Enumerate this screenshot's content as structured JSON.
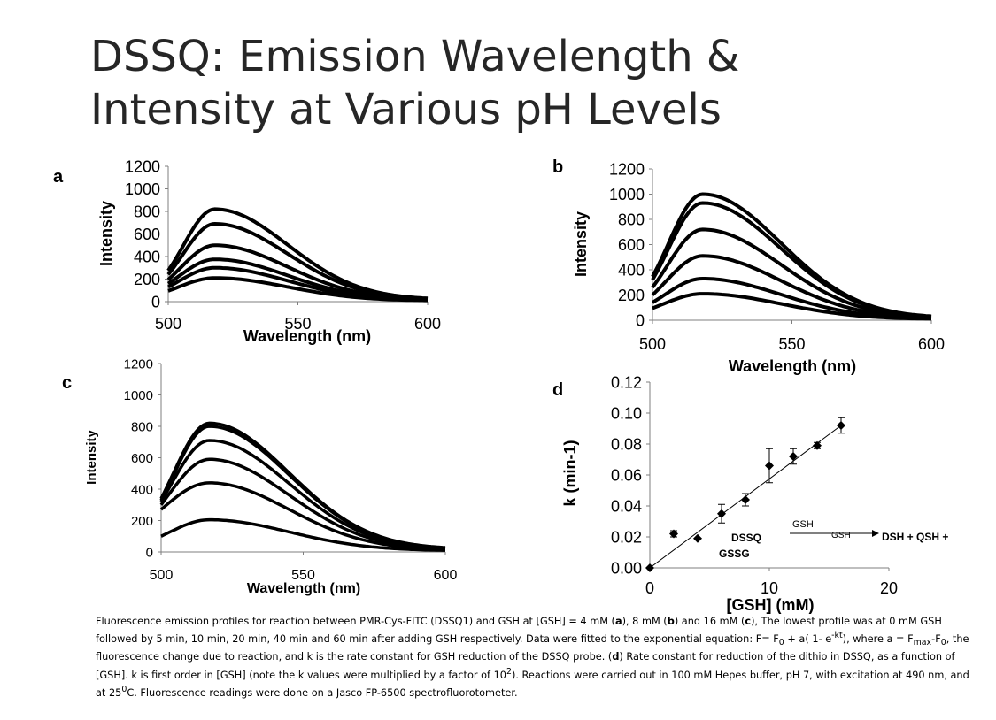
{
  "title_line1": "DSSQ: Emission Wavelength &",
  "title_line2": "Intensity at Various pH Levels",
  "panels": {
    "a": "a",
    "b": "b",
    "c": "c",
    "d": "d"
  },
  "reaction": {
    "reactant": "DSSQ",
    "arrow_label": "GSH",
    "arrow_sub": "GSH",
    "products": "DSH + QSH +",
    "byproduct": "GSSG"
  },
  "caption": {
    "p1": "Fluorescence emission profiles for reaction between PMR-Cys-FITC (DSSQ1) and GSH at [GSH] = 4 mM (",
    "a": "a",
    "p2": "), 8 mM (",
    "b": "b",
    "p3": ") and 16 mM (",
    "c": "c",
    "p4": "), The  lowest profile was at 0 mM GSH followed by 5 min, 10 min, 20 min, 40 min and 60 min after adding GSH respectively. Data were fitted to the exponential equation: F= F",
    "sub0": "0",
    "p5": " + a( 1- e",
    "sup_kt": "-kt",
    "p6": "), where  a = F",
    "sub_max": "max",
    "p7": "-F",
    "sub0b": "0",
    "p8": ", the fluorescence change due to reaction, and  k is the rate constant for GSH reduction of the DSSQ probe. (",
    "d": "d",
    "p9": ") Rate constant for reduction of the dithio in DSSQ, as a function of [GSH]. k is first order in [GSH] (note the k values were multiplied by a factor of 10",
    "sup2": "2",
    "p10": "). Reactions were carried out in 100 mM Hepes buffer, pH 7, with excitation at 490 nm, and at 25",
    "sup_o": "0",
    "p11": "C. Fluorescence readings were done on a  Jasco FP-6500 spectrofluorotometer."
  },
  "chart_data": [
    {
      "id": "a",
      "type": "line",
      "xlabel": "Wavelength (nm)",
      "ylabel": "Intensity",
      "xlim": [
        500,
        600
      ],
      "ylim": [
        0,
        1200
      ],
      "xticks": [
        "500",
        "550",
        "600"
      ],
      "yticks": [
        "0",
        "200",
        "400",
        "600",
        "800",
        "1000",
        "1200"
      ],
      "peak_x": 518,
      "series": [
        {
          "peak": 210,
          "start": 95,
          "end": 8
        },
        {
          "peak": 300,
          "start": 130,
          "end": 10
        },
        {
          "peak": 375,
          "start": 160,
          "end": 12
        },
        {
          "peak": 500,
          "start": 195,
          "end": 14
        },
        {
          "peak": 690,
          "start": 240,
          "end": 16
        },
        {
          "peak": 820,
          "start": 275,
          "end": 18
        }
      ]
    },
    {
      "id": "b",
      "type": "line",
      "xlabel": "Wavelength (nm)",
      "ylabel": "Intensity",
      "xlim": [
        500,
        600
      ],
      "ylim": [
        0,
        1200
      ],
      "xticks": [
        "500",
        "550",
        "600"
      ],
      "yticks": [
        "0",
        "200",
        "400",
        "600",
        "800",
        "1000",
        "1200"
      ],
      "peak_x": 518,
      "series": [
        {
          "peak": 210,
          "start": 95,
          "end": 8
        },
        {
          "peak": 330,
          "start": 140,
          "end": 10
        },
        {
          "peak": 510,
          "start": 200,
          "end": 12
        },
        {
          "peak": 720,
          "start": 260,
          "end": 14
        },
        {
          "peak": 930,
          "start": 320,
          "end": 16
        },
        {
          "peak": 1000,
          "start": 345,
          "end": 18
        }
      ]
    },
    {
      "id": "c",
      "type": "line",
      "xlabel": "Wavelength (nm)",
      "ylabel": "Intensity",
      "xlim": [
        500,
        600
      ],
      "ylim": [
        0,
        1200
      ],
      "xticks": [
        "500",
        "550",
        "600"
      ],
      "yticks": [
        "0",
        "200",
        "400",
        "600",
        "800",
        "1000",
        "1200"
      ],
      "peak_x": 517,
      "series": [
        {
          "peak": 205,
          "start": 100,
          "end": 8
        },
        {
          "peak": 440,
          "start": 270,
          "end": 10
        },
        {
          "peak": 590,
          "start": 300,
          "end": 12
        },
        {
          "peak": 710,
          "start": 320,
          "end": 14
        },
        {
          "peak": 800,
          "start": 330,
          "end": 16
        },
        {
          "peak": 820,
          "start": 340,
          "end": 18
        }
      ]
    },
    {
      "id": "d",
      "type": "scatter",
      "xlabel": "[GSH] (mM)",
      "ylabel": "k (min-1)",
      "xlim": [
        0,
        20
      ],
      "ylim": [
        0,
        0.12
      ],
      "xticks": [
        "0",
        "10",
        "20"
      ],
      "yticks": [
        "0.00",
        "0.02",
        "0.04",
        "0.06",
        "0.08",
        "0.10",
        "0.12"
      ],
      "points": [
        {
          "x": 0,
          "y": 0.0,
          "err": 0
        },
        {
          "x": 2,
          "y": 0.022,
          "err": 0.002
        },
        {
          "x": 4,
          "y": 0.019,
          "err": 0
        },
        {
          "x": 6,
          "y": 0.035,
          "err": 0.006
        },
        {
          "x": 8,
          "y": 0.044,
          "err": 0.004
        },
        {
          "x": 10,
          "y": 0.066,
          "err": 0.011
        },
        {
          "x": 12,
          "y": 0.072,
          "err": 0.005
        },
        {
          "x": 14,
          "y": 0.079,
          "err": 0.002
        },
        {
          "x": 16,
          "y": 0.092,
          "err": 0.005
        }
      ],
      "fit": {
        "slope": 0.00575,
        "intercept": 0.0
      }
    }
  ]
}
